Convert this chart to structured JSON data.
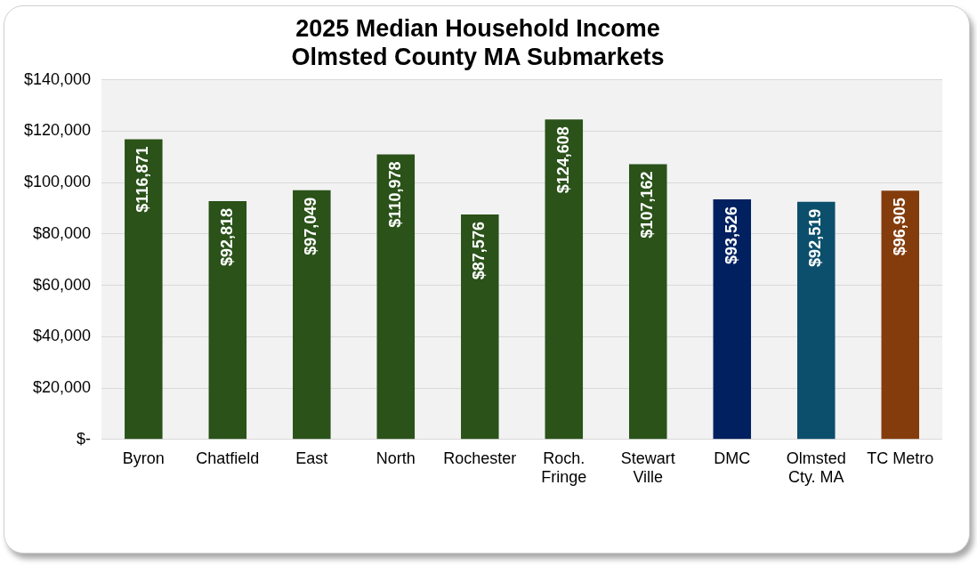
{
  "chart_data": {
    "type": "bar",
    "title": "2025 Median Household Income\nOlmsted County MA Submarkets",
    "categories": [
      "Byron",
      "Chatfield",
      "East",
      "North",
      "Rochester",
      "Roch. Fringe",
      "Stewart Ville",
      "DMC",
      "Olmsted Cty. MA",
      "TC Metro"
    ],
    "values": [
      116871,
      92818,
      97049,
      110978,
      87576,
      124608,
      107162,
      93526,
      92519,
      96905
    ],
    "colors": [
      "#2a5219",
      "#2a5219",
      "#2a5219",
      "#2a5219",
      "#2a5219",
      "#2a5219",
      "#2a5219",
      "#002060",
      "#0b4f6c",
      "#843c0c"
    ],
    "value_labels": [
      "$116,871",
      "$92,818",
      "$97,049",
      "$110,978",
      "$87,576",
      "$124,608",
      "$107,162",
      "$93,526",
      "$92,519",
      "$96,905"
    ],
    "ylim": [
      0,
      140000
    ],
    "yticks": [
      {
        "value": 0,
        "label": "$-"
      },
      {
        "value": 20000,
        "label": "$20,000"
      },
      {
        "value": 40000,
        "label": "$40,000"
      },
      {
        "value": 60000,
        "label": "$60,000"
      },
      {
        "value": 80000,
        "label": "$80,000"
      },
      {
        "value": 100000,
        "label": "$100,000"
      },
      {
        "value": 120000,
        "label": "$120,000"
      },
      {
        "value": 140000,
        "label": "$140,000"
      }
    ],
    "grid": "y",
    "legend": false
  }
}
